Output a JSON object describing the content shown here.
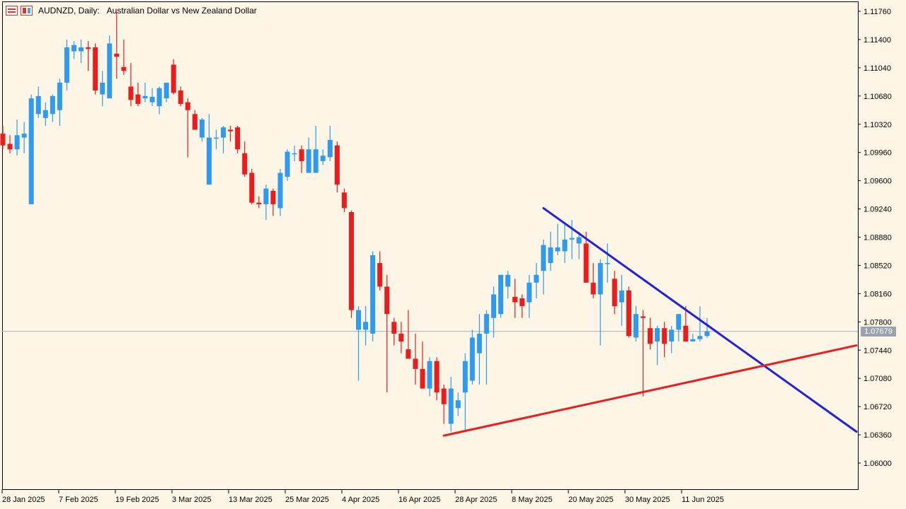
{
  "header": {
    "symbol": "AUDNZD, Daily:",
    "description": "Australian Dollar vs New Zealand Dollar",
    "icons": [
      "grid-icon",
      "window-icon"
    ]
  },
  "colors": {
    "background": "#fdf5e6",
    "bull": "#2e9bf0",
    "bear": "#ec1c1c",
    "resistance_line": "#1f22e6",
    "support_line": "#ee1c1c",
    "current_price_line": "#a8b0b8",
    "axis": "#000000"
  },
  "price_axis": {
    "labels": [
      "1.11760",
      "1.11400",
      "1.11040",
      "1.10680",
      "1.10320",
      "1.09960",
      "1.09600",
      "1.09240",
      "1.08880",
      "1.08520",
      "1.08160",
      "1.07800",
      "1.07440",
      "1.07080",
      "1.06720",
      "1.06360",
      "1.06000"
    ],
    "current_price": "1.07679"
  },
  "time_axis": {
    "labels": [
      "28 Jan 2025",
      "7 Feb 2025",
      "19 Feb 2025",
      "3 Mar 2025",
      "13 Mar 2025",
      "25 Mar 2025",
      "4 Apr 2025",
      "16 Apr 2025",
      "28 Apr 2025",
      "8 May 2025",
      "20 May 2025",
      "30 May 2025",
      "11 Jun 2025"
    ]
  },
  "chart_data": {
    "type": "candlestick",
    "title": "AUDNZD, Daily: Australian Dollar vs New Zealand Dollar",
    "ylim": [
      1.058,
      1.118
    ],
    "grid": false,
    "candles": [
      {
        "o": 1.102,
        "h": 1.103,
        "l": 1.1,
        "c": 1.1005
      },
      {
        "o": 1.1007,
        "h": 1.1018,
        "l": 1.0995,
        "c": 1.1
      },
      {
        "o": 1.1,
        "h": 1.1038,
        "l": 1.0992,
        "c": 1.1018
      },
      {
        "o": 1.1015,
        "h": 1.1035,
        "l": 1.0995,
        "c": 1.102
      },
      {
        "o": 1.093,
        "h": 1.107,
        "l": 1.093,
        "c": 1.1065
      },
      {
        "o": 1.1045,
        "h": 1.108,
        "l": 1.104,
        "c": 1.1068
      },
      {
        "o": 1.104,
        "h": 1.106,
        "l": 1.103,
        "c": 1.105
      },
      {
        "o": 1.1045,
        "h": 1.107,
        "l": 1.1035,
        "c": 1.1068
      },
      {
        "o": 1.105,
        "h": 1.109,
        "l": 1.103,
        "c": 1.1085
      },
      {
        "o": 1.1085,
        "h": 1.114,
        "l": 1.1075,
        "c": 1.113
      },
      {
        "o": 1.1125,
        "h": 1.1138,
        "l": 1.1115,
        "c": 1.1133
      },
      {
        "o": 1.1125,
        "h": 1.114,
        "l": 1.111,
        "c": 1.113
      },
      {
        "o": 1.113,
        "h": 1.1138,
        "l": 1.11,
        "c": 1.1128
      },
      {
        "o": 1.113,
        "h": 1.1135,
        "l": 1.107,
        "c": 1.1075
      },
      {
        "o": 1.107,
        "h": 1.11,
        "l": 1.1055,
        "c": 1.1085
      },
      {
        "o": 1.1065,
        "h": 1.1145,
        "l": 1.1065,
        "c": 1.1135
      },
      {
        "o": 1.1122,
        "h": 1.1175,
        "l": 1.109,
        "c": 1.1118
      },
      {
        "o": 1.1105,
        "h": 1.114,
        "l": 1.1095,
        "c": 1.11
      },
      {
        "o": 1.108,
        "h": 1.111,
        "l": 1.1055,
        "c": 1.1063
      },
      {
        "o": 1.107,
        "h": 1.1085,
        "l": 1.1055,
        "c": 1.1058
      },
      {
        "o": 1.1065,
        "h": 1.1085,
        "l": 1.106,
        "c": 1.1068
      },
      {
        "o": 1.106,
        "h": 1.1078,
        "l": 1.1055,
        "c": 1.1067
      },
      {
        "o": 1.1055,
        "h": 1.108,
        "l": 1.1045,
        "c": 1.1078
      },
      {
        "o": 1.1065,
        "h": 1.1085,
        "l": 1.106,
        "c": 1.1085
      },
      {
        "o": 1.1108,
        "h": 1.1115,
        "l": 1.107,
        "c": 1.1072
      },
      {
        "o": 1.1075,
        "h": 1.108,
        "l": 1.1055,
        "c": 1.1058
      },
      {
        "o": 1.106,
        "h": 1.1065,
        "l": 1.099,
        "c": 1.105
      },
      {
        "o": 1.1045,
        "h": 1.105,
        "l": 1.1025,
        "c": 1.1025
      },
      {
        "o": 1.1015,
        "h": 1.104,
        "l": 1.101,
        "c": 1.1038
      },
      {
        "o": 1.0955,
        "h": 1.1045,
        "l": 1.0955,
        "c": 1.1015
      },
      {
        "o": 1.1015,
        "h": 1.1025,
        "l": 1.1,
        "c": 1.1015
      },
      {
        "o": 1.1015,
        "h": 1.103,
        "l": 1.0995,
        "c": 1.1028
      },
      {
        "o": 1.1025,
        "h": 1.103,
        "l": 1.101,
        "c": 1.1023
      },
      {
        "o": 1.1028,
        "h": 1.103,
        "l": 1.0995,
        "c": 1.1
      },
      {
        "o": 1.0995,
        "h": 1.101,
        "l": 1.0965,
        "c": 1.0968
      },
      {
        "o": 1.097,
        "h": 1.0975,
        "l": 1.093,
        "c": 1.0932
      },
      {
        "o": 1.0932,
        "h": 1.094,
        "l": 1.0925,
        "c": 1.093
      },
      {
        "o": 1.093,
        "h": 1.0955,
        "l": 1.091,
        "c": 1.095
      },
      {
        "o": 1.0947,
        "h": 1.095,
        "l": 1.0915,
        "c": 1.093
      },
      {
        "o": 1.0925,
        "h": 1.0975,
        "l": 1.0915,
        "c": 1.097
      },
      {
        "o": 1.0965,
        "h": 1.1,
        "l": 1.096,
        "c": 1.0997
      },
      {
        "o": 1.0995,
        "h": 1.1005,
        "l": 1.0985,
        "c": 1.0995
      },
      {
        "o": 1.1,
        "h": 1.1005,
        "l": 1.097,
        "c": 1.0985
      },
      {
        "o": 1.097,
        "h": 1.1015,
        "l": 1.097,
        "c": 1.1
      },
      {
        "o": 1.097,
        "h": 1.103,
        "l": 1.097,
        "c": 1.1
      },
      {
        "o": 1.0985,
        "h": 1.1,
        "l": 1.098,
        "c": 1.0992
      },
      {
        "o": 1.099,
        "h": 1.103,
        "l": 1.0985,
        "c": 1.1012
      },
      {
        "o": 1.1005,
        "h": 1.101,
        "l": 1.0945,
        "c": 1.0955
      },
      {
        "o": 1.0945,
        "h": 1.095,
        "l": 1.092,
        "c": 1.0925
      },
      {
        "o": 1.092,
        "h": 1.0922,
        "l": 1.0785,
        "c": 1.0795
      },
      {
        "o": 1.077,
        "h": 1.08,
        "l": 1.0705,
        "c": 1.0795
      },
      {
        "o": 1.077,
        "h": 1.08,
        "l": 1.075,
        "c": 1.078
      },
      {
        "o": 1.0765,
        "h": 1.087,
        "l": 1.0755,
        "c": 1.0865
      },
      {
        "o": 1.0855,
        "h": 1.087,
        "l": 1.082,
        "c": 1.0825
      },
      {
        "o": 1.0825,
        "h": 1.084,
        "l": 1.069,
        "c": 1.079
      },
      {
        "o": 1.078,
        "h": 1.0785,
        "l": 1.075,
        "c": 1.0765
      },
      {
        "o": 1.0765,
        "h": 1.078,
        "l": 1.074,
        "c": 1.0755
      },
      {
        "o": 1.0745,
        "h": 1.0795,
        "l": 1.0735,
        "c": 1.0733
      },
      {
        "o": 1.0733,
        "h": 1.0765,
        "l": 1.07,
        "c": 1.072
      },
      {
        "o": 1.072,
        "h": 1.0755,
        "l": 1.0695,
        "c": 1.0695
      },
      {
        "o": 1.0695,
        "h": 1.0735,
        "l": 1.0685,
        "c": 1.073
      },
      {
        "o": 1.073,
        "h": 1.0735,
        "l": 1.068,
        "c": 1.069
      },
      {
        "o": 1.0695,
        "h": 1.07,
        "l": 1.065,
        "c": 1.0675
      },
      {
        "o": 1.065,
        "h": 1.071,
        "l": 1.064,
        "c": 1.0695
      },
      {
        "o": 1.067,
        "h": 1.069,
        "l": 1.066,
        "c": 1.068
      },
      {
        "o": 1.069,
        "h": 1.074,
        "l": 1.064,
        "c": 1.073
      },
      {
        "o": 1.0705,
        "h": 1.077,
        "l": 1.07,
        "c": 1.076
      },
      {
        "o": 1.074,
        "h": 1.079,
        "l": 1.07,
        "c": 1.0765
      },
      {
        "o": 1.0765,
        "h": 1.0795,
        "l": 1.07,
        "c": 1.079
      },
      {
        "o": 1.0785,
        "h": 1.0825,
        "l": 1.076,
        "c": 1.0815
      },
      {
        "o": 1.079,
        "h": 1.0835,
        "l": 1.0785,
        "c": 1.084
      },
      {
        "o": 1.0825,
        "h": 1.0845,
        "l": 1.081,
        "c": 1.084
      },
      {
        "o": 1.0812,
        "h": 1.0835,
        "l": 1.0785,
        "c": 1.0805
      },
      {
        "o": 1.081,
        "h": 1.0815,
        "l": 1.0785,
        "c": 1.08
      },
      {
        "o": 1.0805,
        "h": 1.084,
        "l": 1.0785,
        "c": 1.083
      },
      {
        "o": 1.083,
        "h": 1.0855,
        "l": 1.081,
        "c": 1.084
      },
      {
        "o": 1.0845,
        "h": 1.0885,
        "l": 1.0815,
        "c": 1.0878
      },
      {
        "o": 1.0855,
        "h": 1.0895,
        "l": 1.0845,
        "c": 1.0875
      },
      {
        "o": 1.087,
        "h": 1.0905,
        "l": 1.0865,
        "c": 1.0875
      },
      {
        "o": 1.087,
        "h": 1.0905,
        "l": 1.0855,
        "c": 1.0885
      },
      {
        "o": 1.0885,
        "h": 1.091,
        "l": 1.086,
        "c": 1.0887
      },
      {
        "o": 1.088,
        "h": 1.0895,
        "l": 1.086,
        "c": 1.0888
      },
      {
        "o": 1.088,
        "h": 1.0895,
        "l": 1.083,
        "c": 1.083
      },
      {
        "o": 1.083,
        "h": 1.0855,
        "l": 1.081,
        "c": 1.0815
      },
      {
        "o": 1.0815,
        "h": 1.086,
        "l": 1.075,
        "c": 1.0855
      },
      {
        "o": 1.0855,
        "h": 1.088,
        "l": 1.083,
        "c": 1.0855
      },
      {
        "o": 1.0835,
        "h": 1.0845,
        "l": 1.079,
        "c": 1.08
      },
      {
        "o": 1.0805,
        "h": 1.084,
        "l": 1.0775,
        "c": 1.082
      },
      {
        "o": 1.082,
        "h": 1.0825,
        "l": 1.076,
        "c": 1.0762
      },
      {
        "o": 1.076,
        "h": 1.08,
        "l": 1.0755,
        "c": 1.079
      },
      {
        "o": 1.0787,
        "h": 1.0795,
        "l": 1.0685,
        "c": 1.0785
      },
      {
        "o": 1.0772,
        "h": 1.0785,
        "l": 1.0745,
        "c": 1.0752
      },
      {
        "o": 1.0755,
        "h": 1.0775,
        "l": 1.0725,
        "c": 1.0772
      },
      {
        "o": 1.0772,
        "h": 1.078,
        "l": 1.0735,
        "c": 1.0752
      },
      {
        "o": 1.0755,
        "h": 1.0775,
        "l": 1.074,
        "c": 1.077
      },
      {
        "o": 1.077,
        "h": 1.079,
        "l": 1.0755,
        "c": 1.079
      },
      {
        "o": 1.0775,
        "h": 1.08,
        "l": 1.0755,
        "c": 1.0755
      },
      {
        "o": 1.0755,
        "h": 1.0765,
        "l": 1.0755,
        "c": 1.0758
      },
      {
        "o": 1.0758,
        "h": 1.08,
        "l": 1.0755,
        "c": 1.0762
      },
      {
        "o": 1.0762,
        "h": 1.0785,
        "l": 1.076,
        "c": 1.0768
      }
    ],
    "trendlines": [
      {
        "name": "resistance",
        "color": "#1f22e6",
        "from": {
          "bar": 76,
          "price": 1.0925
        },
        "to": {
          "bar": 120,
          "price": 1.064
        }
      },
      {
        "name": "support",
        "color": "#ee1c1c",
        "from": {
          "bar": 62,
          "price": 1.0635
        },
        "to": {
          "bar": 120,
          "price": 1.075
        }
      }
    ],
    "current_price_line": 1.07679
  }
}
